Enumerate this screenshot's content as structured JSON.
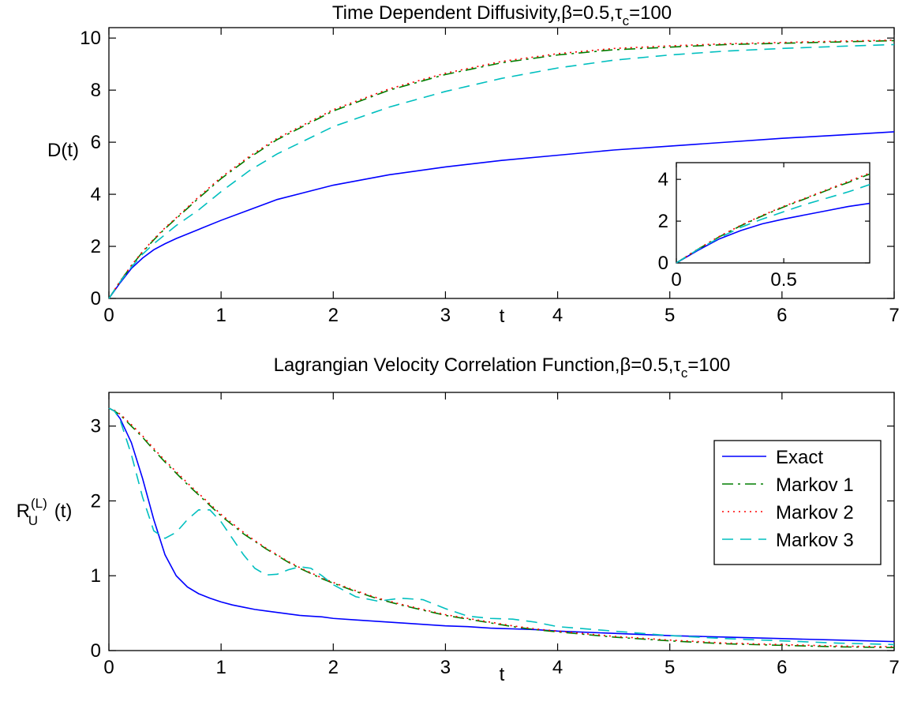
{
  "chart_data": [
    {
      "type": "line",
      "title": "Time Dependent Diffusivity,β=0.5,τc=100",
      "title_parts": {
        "main": "Time Dependent Diffusivity,β=0.5,τ",
        "sub": "c",
        "tail": "=100"
      },
      "xlabel": "t",
      "ylabel": "D(t)",
      "xlim": [
        0,
        7
      ],
      "ylim": [
        0,
        10.4
      ],
      "xticks": [
        0,
        1,
        2,
        3,
        4,
        5,
        6,
        7
      ],
      "yticks": [
        0,
        2,
        4,
        6,
        8,
        10
      ],
      "grid": false,
      "x": [
        0,
        0.1,
        0.2,
        0.3,
        0.4,
        0.5,
        0.6,
        0.8,
        1.0,
        1.25,
        1.5,
        2.0,
        2.5,
        3.0,
        3.5,
        4.0,
        4.5,
        5.0,
        5.5,
        6.0,
        6.5,
        7.0
      ],
      "series": [
        {
          "name": "Exact",
          "color": "#0000ff",
          "dash": "solid",
          "values": [
            0,
            0.6,
            1.15,
            1.55,
            1.87,
            2.1,
            2.3,
            2.65,
            3.0,
            3.4,
            3.8,
            4.35,
            4.75,
            5.05,
            5.3,
            5.5,
            5.7,
            5.85,
            6.0,
            6.15,
            6.27,
            6.4
          ]
        },
        {
          "name": "Markov 1",
          "color": "#007f00",
          "dash": "dashdot",
          "values": [
            0,
            0.65,
            1.25,
            1.78,
            2.25,
            2.68,
            3.07,
            3.85,
            4.6,
            5.4,
            6.1,
            7.2,
            8.0,
            8.6,
            9.05,
            9.35,
            9.55,
            9.65,
            9.75,
            9.8,
            9.85,
            9.9
          ]
        },
        {
          "name": "Markov 2",
          "color": "#ff0000",
          "dash": "dotted",
          "values": [
            0,
            0.66,
            1.27,
            1.8,
            2.28,
            2.71,
            3.1,
            3.9,
            4.65,
            5.45,
            6.15,
            7.25,
            8.05,
            8.65,
            9.1,
            9.4,
            9.6,
            9.7,
            9.78,
            9.83,
            9.88,
            9.92
          ]
        },
        {
          "name": "Markov 3",
          "color": "#00bfbf",
          "dash": "dashed",
          "values": [
            0,
            0.64,
            1.2,
            1.7,
            2.1,
            2.45,
            2.8,
            3.4,
            4.1,
            4.9,
            5.55,
            6.6,
            7.35,
            7.95,
            8.45,
            8.85,
            9.15,
            9.35,
            9.5,
            9.6,
            9.68,
            9.75
          ]
        }
      ],
      "inset": {
        "xlim": [
          0,
          0.9
        ],
        "ylim": [
          0,
          4.8
        ],
        "xticks": [
          0,
          0.5
        ],
        "xtick_labels": [
          "0",
          "0.5"
        ],
        "yticks": [
          0,
          2,
          4
        ],
        "x": [
          0,
          0.1,
          0.2,
          0.3,
          0.4,
          0.5,
          0.6,
          0.7,
          0.8,
          0.9
        ],
        "series": [
          {
            "name": "Exact",
            "values": [
              0,
              0.6,
              1.15,
              1.55,
              1.87,
              2.1,
              2.3,
              2.5,
              2.7,
              2.85
            ]
          },
          {
            "name": "Markov 1",
            "values": [
              0,
              0.65,
              1.25,
              1.78,
              2.25,
              2.68,
              3.07,
              3.47,
              3.85,
              4.25
            ]
          },
          {
            "name": "Markov 2",
            "values": [
              0,
              0.66,
              1.27,
              1.8,
              2.28,
              2.71,
              3.1,
              3.5,
              3.9,
              4.3
            ]
          },
          {
            "name": "Markov 3",
            "values": [
              0,
              0.64,
              1.2,
              1.7,
              2.1,
              2.45,
              2.8,
              3.1,
              3.4,
              3.75
            ]
          }
        ]
      }
    },
    {
      "type": "line",
      "title": "Lagrangian Velocity Correlation Function,β=0.5,τc=100",
      "title_parts": {
        "main": "Lagrangian Velocity Correlation Function,β=0.5,τ",
        "sub": "c",
        "tail": "=100"
      },
      "xlabel": "t",
      "ylabel": "R_U^(L) (t)",
      "ylabel_parts": {
        "main": "R",
        "sub": "U",
        "sup": "(L)",
        "tail": " (t)"
      },
      "xlim": [
        0,
        7
      ],
      "ylim": [
        0,
        3.45
      ],
      "xticks": [
        0,
        1,
        2,
        3,
        4,
        5,
        6,
        7
      ],
      "yticks": [
        0,
        1,
        2,
        3
      ],
      "grid": false,
      "legend": "top-right",
      "x": [
        0,
        0.05,
        0.1,
        0.2,
        0.3,
        0.4,
        0.5,
        0.6,
        0.7,
        0.8,
        0.9,
        1.0,
        1.1,
        1.2,
        1.3,
        1.4,
        1.5,
        1.6,
        1.7,
        1.8,
        1.9,
        2.0,
        2.2,
        2.4,
        2.6,
        2.8,
        3.0,
        3.2,
        3.4,
        3.6,
        3.8,
        4.0,
        4.5,
        5.0,
        5.5,
        6.0,
        6.5,
        7.0
      ],
      "series": [
        {
          "name": "Exact",
          "color": "#0000ff",
          "dash": "solid",
          "values": [
            3.24,
            3.2,
            3.1,
            2.78,
            2.3,
            1.75,
            1.28,
            1.0,
            0.85,
            0.76,
            0.7,
            0.65,
            0.61,
            0.58,
            0.55,
            0.53,
            0.51,
            0.49,
            0.47,
            0.46,
            0.45,
            0.43,
            0.41,
            0.39,
            0.37,
            0.35,
            0.33,
            0.32,
            0.3,
            0.29,
            0.28,
            0.26,
            0.23,
            0.2,
            0.18,
            0.16,
            0.14,
            0.12
          ]
        },
        {
          "name": "Markov 1",
          "color": "#007f00",
          "dash": "dashdot",
          "values": [
            3.24,
            3.2,
            3.15,
            3.0,
            2.85,
            2.68,
            2.52,
            2.37,
            2.22,
            2.08,
            1.94,
            1.8,
            1.68,
            1.56,
            1.46,
            1.36,
            1.27,
            1.18,
            1.1,
            1.03,
            0.96,
            0.9,
            0.79,
            0.69,
            0.61,
            0.54,
            0.47,
            0.42,
            0.37,
            0.32,
            0.28,
            0.25,
            0.18,
            0.13,
            0.09,
            0.07,
            0.05,
            0.04
          ]
        },
        {
          "name": "Markov 2",
          "color": "#ff0000",
          "dash": "dotted",
          "values": [
            3.24,
            3.21,
            3.16,
            3.02,
            2.87,
            2.7,
            2.54,
            2.39,
            2.24,
            2.1,
            1.96,
            1.82,
            1.7,
            1.58,
            1.47,
            1.37,
            1.28,
            1.19,
            1.11,
            1.04,
            0.97,
            0.91,
            0.8,
            0.7,
            0.62,
            0.55,
            0.48,
            0.43,
            0.38,
            0.33,
            0.29,
            0.26,
            0.19,
            0.14,
            0.1,
            0.08,
            0.06,
            0.05
          ]
        },
        {
          "name": "Markov 3",
          "color": "#00bfbf",
          "dash": "dashed",
          "values": [
            3.24,
            3.2,
            3.08,
            2.62,
            2.05,
            1.6,
            1.5,
            1.58,
            1.75,
            1.88,
            1.88,
            1.72,
            1.5,
            1.28,
            1.1,
            1.01,
            1.02,
            1.08,
            1.12,
            1.1,
            1.0,
            0.88,
            0.72,
            0.66,
            0.7,
            0.68,
            0.56,
            0.46,
            0.43,
            0.42,
            0.38,
            0.32,
            0.26,
            0.2,
            0.16,
            0.13,
            0.1,
            0.08
          ]
        }
      ]
    }
  ]
}
